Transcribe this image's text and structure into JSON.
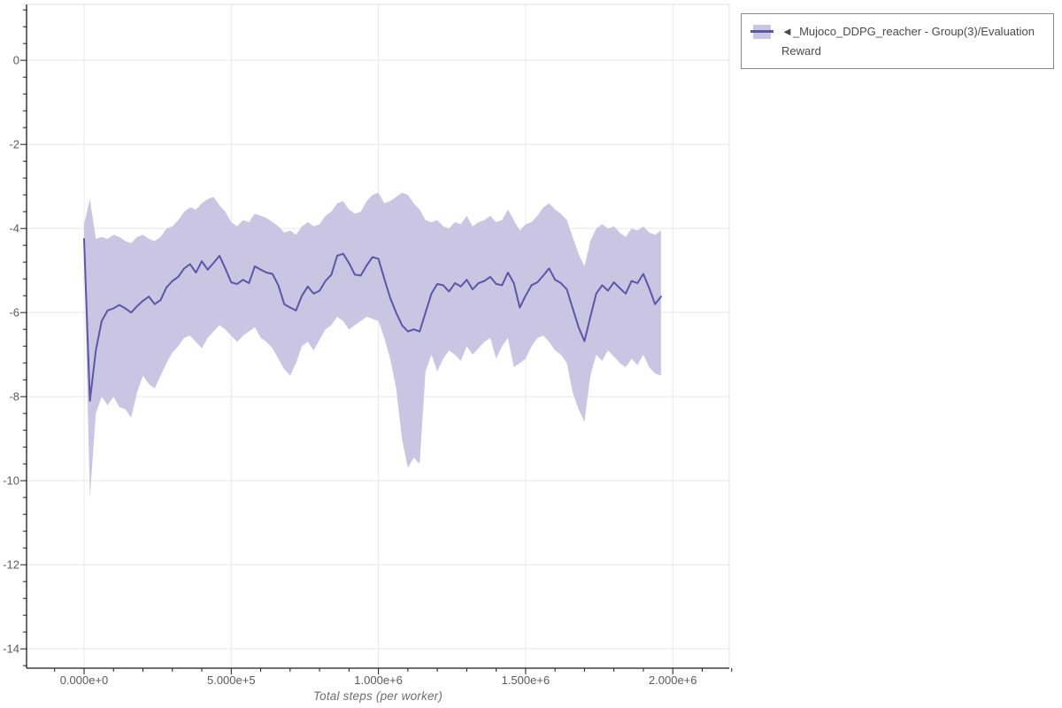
{
  "page": {
    "background": "#ffffff"
  },
  "style": {
    "line_color": "#5d56a6",
    "band_color": "#c9c5e3",
    "grid_color": "#e8e8e8",
    "border_color": "#e2e2e2",
    "axis_color": "#1a1a1a",
    "tick_label_color": "#5a5a5a",
    "axis_title_color": "#6e6e6e",
    "legend_border_color": "#8a8a8a",
    "legend_text_color": "#4a4a4a"
  },
  "legend": {
    "label": "◄_Mujoco_DDPG_reacher - Group(3)/Evaluation Reward",
    "swatch_band_color": "#c9c5e3",
    "swatch_line_color": "#5d56a6"
  },
  "chart_data": {
    "type": "line",
    "xlabel": "Total steps (per worker)",
    "ylabel": "",
    "grid": true,
    "legend_position": "top-right",
    "xlim": [
      -195400,
      2191800
    ],
    "ylim": [
      -14.46,
      1.33
    ],
    "x_ticks": {
      "values": [
        0,
        500000,
        1000000,
        1500000,
        2000000
      ],
      "labels": [
        "0.000e+0",
        "5.000e+5",
        "1.000e+6",
        "1.500e+6",
        "2.000e+6"
      ],
      "minor_step": 100000
    },
    "y_ticks": {
      "values": [
        0,
        -2,
        -4,
        -6,
        -8,
        -10,
        -12,
        -14
      ],
      "labels": [
        "0",
        "-2",
        "-4",
        "-6",
        "-8",
        "-10",
        "-12",
        "-14"
      ],
      "minor_step": 0.4
    },
    "series": [
      {
        "name": "_Mujoco_DDPG_reacher - Group(3)/Evaluation Reward",
        "line_color": "#5d56a6",
        "band_color": "#c9c5e3",
        "x": [
          0,
          20000,
          40000,
          60000,
          80000,
          100000,
          120000,
          140000,
          160000,
          180000,
          200000,
          220000,
          240000,
          260000,
          280000,
          300000,
          320000,
          340000,
          360000,
          380000,
          400000,
          420000,
          440000,
          460000,
          480000,
          500000,
          520000,
          540000,
          560000,
          580000,
          600000,
          620000,
          640000,
          660000,
          680000,
          700000,
          720000,
          740000,
          760000,
          780000,
          800000,
          820000,
          840000,
          860000,
          880000,
          900000,
          920000,
          940000,
          960000,
          980000,
          1000000,
          1020000,
          1040000,
          1060000,
          1080000,
          1100000,
          1120000,
          1140000,
          1160000,
          1180000,
          1200000,
          1220000,
          1240000,
          1260000,
          1280000,
          1300000,
          1320000,
          1340000,
          1360000,
          1380000,
          1400000,
          1420000,
          1440000,
          1460000,
          1480000,
          1500000,
          1520000,
          1540000,
          1560000,
          1580000,
          1600000,
          1620000,
          1640000,
          1660000,
          1680000,
          1700000,
          1720000,
          1740000,
          1760000,
          1780000,
          1800000,
          1820000,
          1840000,
          1860000,
          1880000,
          1900000,
          1920000,
          1940000,
          1960000
        ],
        "mean": [
          -4.25,
          -8.1,
          -6.9,
          -6.2,
          -5.95,
          -5.9,
          -5.82,
          -5.9,
          -6.0,
          -5.85,
          -5.72,
          -5.62,
          -5.8,
          -5.7,
          -5.4,
          -5.25,
          -5.15,
          -4.95,
          -4.85,
          -5.05,
          -4.78,
          -4.98,
          -4.82,
          -4.65,
          -4.95,
          -5.28,
          -5.32,
          -5.22,
          -5.3,
          -4.9,
          -4.98,
          -5.05,
          -5.08,
          -5.35,
          -5.8,
          -5.88,
          -5.95,
          -5.6,
          -5.38,
          -5.55,
          -5.48,
          -5.25,
          -5.1,
          -4.65,
          -4.6,
          -4.82,
          -5.1,
          -5.12,
          -4.88,
          -4.68,
          -4.72,
          -5.2,
          -5.65,
          -6.0,
          -6.3,
          -6.45,
          -6.4,
          -6.45,
          -6.0,
          -5.55,
          -5.32,
          -5.35,
          -5.5,
          -5.3,
          -5.38,
          -5.22,
          -5.45,
          -5.3,
          -5.25,
          -5.15,
          -5.32,
          -5.35,
          -5.05,
          -5.3,
          -5.88,
          -5.6,
          -5.35,
          -5.28,
          -5.12,
          -4.95,
          -5.22,
          -5.3,
          -5.45,
          -5.9,
          -6.35,
          -6.68,
          -6.1,
          -5.55,
          -5.35,
          -5.48,
          -5.28,
          -5.42,
          -5.55,
          -5.25,
          -5.3,
          -5.08,
          -5.42,
          -5.8,
          -5.62
        ],
        "band_high": [
          -3.9,
          -3.3,
          -4.25,
          -4.2,
          -4.25,
          -4.15,
          -4.2,
          -4.3,
          -4.35,
          -4.2,
          -4.15,
          -4.25,
          -4.3,
          -4.2,
          -4.0,
          -3.95,
          -3.8,
          -3.6,
          -3.5,
          -3.55,
          -3.4,
          -3.3,
          -3.25,
          -3.45,
          -3.6,
          -3.85,
          -3.95,
          -3.8,
          -3.85,
          -3.65,
          -3.7,
          -3.75,
          -3.85,
          -3.95,
          -4.1,
          -4.05,
          -4.15,
          -3.95,
          -3.85,
          -3.95,
          -3.9,
          -3.7,
          -3.6,
          -3.4,
          -3.35,
          -3.55,
          -3.65,
          -3.6,
          -3.35,
          -3.2,
          -3.15,
          -3.4,
          -3.35,
          -3.25,
          -3.15,
          -3.2,
          -3.4,
          -3.55,
          -3.8,
          -3.85,
          -3.8,
          -3.95,
          -4.0,
          -3.85,
          -3.9,
          -3.7,
          -3.95,
          -3.85,
          -3.8,
          -3.7,
          -3.85,
          -3.8,
          -3.55,
          -3.8,
          -4.05,
          -3.9,
          -3.85,
          -3.7,
          -3.5,
          -3.4,
          -3.55,
          -3.65,
          -3.8,
          -4.2,
          -4.6,
          -4.9,
          -4.3,
          -4.0,
          -3.9,
          -4.0,
          -3.95,
          -4.1,
          -4.2,
          -4.0,
          -4.05,
          -3.95,
          -4.1,
          -4.15,
          -4.05
        ],
        "band_low": [
          -4.6,
          -10.4,
          -8.4,
          -8.0,
          -8.2,
          -8.0,
          -8.25,
          -8.3,
          -8.5,
          -7.9,
          -7.5,
          -7.7,
          -7.8,
          -7.5,
          -7.2,
          -6.95,
          -6.8,
          -6.6,
          -6.55,
          -6.7,
          -6.85,
          -6.6,
          -6.45,
          -6.3,
          -6.4,
          -6.55,
          -6.7,
          -6.55,
          -6.45,
          -6.35,
          -6.6,
          -6.7,
          -6.85,
          -7.1,
          -7.35,
          -7.5,
          -7.2,
          -6.8,
          -6.7,
          -6.9,
          -6.65,
          -6.4,
          -6.3,
          -6.1,
          -6.2,
          -6.4,
          -6.3,
          -6.2,
          -6.1,
          -6.15,
          -6.2,
          -6.6,
          -7.1,
          -7.8,
          -9.0,
          -9.7,
          -9.45,
          -9.6,
          -7.4,
          -7.0,
          -7.4,
          -7.1,
          -6.9,
          -7.0,
          -7.15,
          -6.8,
          -7.0,
          -6.85,
          -6.7,
          -6.6,
          -7.1,
          -6.8,
          -6.6,
          -7.3,
          -7.2,
          -7.1,
          -6.8,
          -6.6,
          -6.55,
          -6.7,
          -6.9,
          -7.0,
          -7.2,
          -7.9,
          -8.3,
          -8.6,
          -7.5,
          -7.0,
          -7.15,
          -6.9,
          -7.05,
          -7.2,
          -7.3,
          -7.1,
          -7.25,
          -7.0,
          -7.3,
          -7.45,
          -7.5
        ]
      }
    ]
  }
}
